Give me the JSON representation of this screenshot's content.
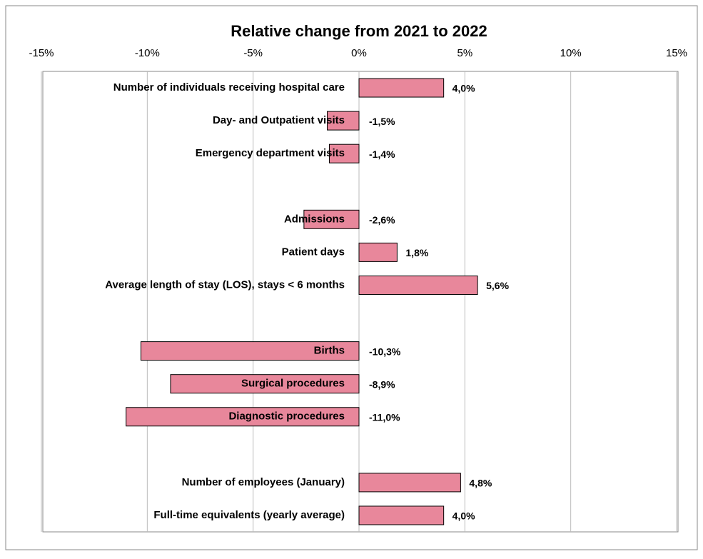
{
  "chart_data": {
    "type": "bar",
    "orientation": "horizontal",
    "title": "Relative change from 2021 to 2022",
    "categories": [
      "Number of individuals receiving hospital care",
      "Day- and Outpatient visits",
      "Emergency department visits",
      null,
      "Admissions",
      "Patient days",
      "Average length of stay (LOS), stays < 6 months",
      null,
      "Births",
      "Surgical procedures",
      "Diagnostic procedures",
      null,
      "Number of employees (January)",
      "Full-time equivalents (yearly average)"
    ],
    "values": [
      4.0,
      -1.5,
      -1.4,
      null,
      -2.6,
      1.8,
      5.6,
      null,
      -10.3,
      -8.9,
      -11.0,
      null,
      4.8,
      4.0
    ],
    "value_labels": [
      "4,0%",
      "-1,5%",
      "-1,4%",
      null,
      "-2,6%",
      "1,8%",
      "5,6%",
      null,
      "-10,3%",
      "-8,9%",
      "-11,0%",
      null,
      "4,8%",
      "4,0%"
    ],
    "color": "#e8879b",
    "xlim": [
      -15,
      15
    ],
    "xticks": [
      {
        "value": -15,
        "label": "-15%"
      },
      {
        "value": -10,
        "label": "-10%"
      },
      {
        "value": -5,
        "label": "-5%"
      },
      {
        "value": 0,
        "label": "0%"
      },
      {
        "value": 5,
        "label": "5%"
      },
      {
        "value": 10,
        "label": "10%"
      },
      {
        "value": 15,
        "label": "15%"
      }
    ],
    "grid": true
  }
}
